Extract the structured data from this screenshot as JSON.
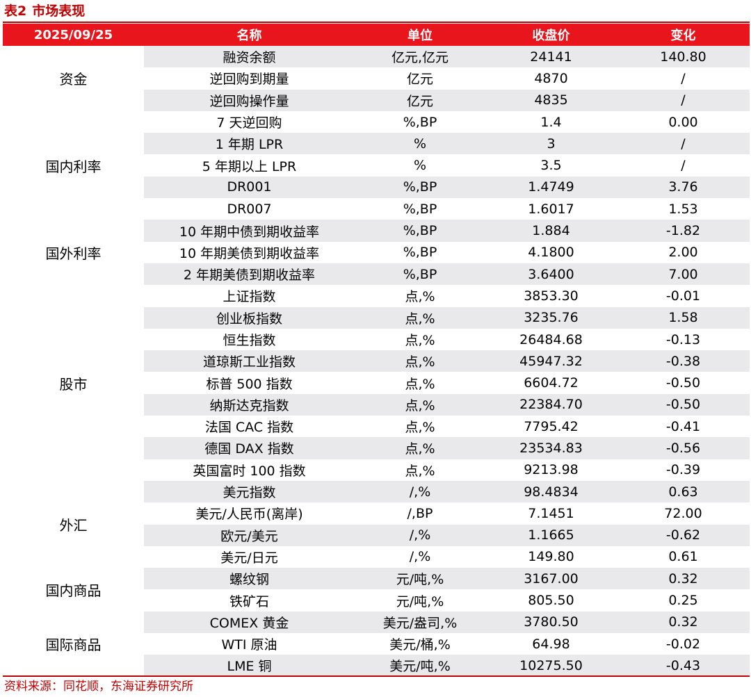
{
  "title": {
    "label": "表2",
    "text": "市场表现"
  },
  "header": {
    "date": "2025/09/25",
    "name": "名称",
    "unit": "单位",
    "close": "收盘价",
    "change": "变化"
  },
  "groups": [
    {
      "category": "资金",
      "rows": [
        {
          "name": "融资余额",
          "unit": "亿元,亿元",
          "close": "24141",
          "change": "140.80"
        },
        {
          "name": "逆回购到期量",
          "unit": "亿元",
          "close": "4870",
          "change": "/"
        },
        {
          "name": "逆回购操作量",
          "unit": "亿元",
          "close": "4835",
          "change": "/"
        }
      ]
    },
    {
      "category": "国内利率",
      "rows": [
        {
          "name": "7 天逆回购",
          "unit": "%,BP",
          "close": "1.4",
          "change": "0.00"
        },
        {
          "name": "1 年期 LPR",
          "unit": "%",
          "close": "3",
          "change": "/"
        },
        {
          "name": "5 年期以上 LPR",
          "unit": "%",
          "close": "3.5",
          "change": "/"
        },
        {
          "name": "DR001",
          "unit": "%,BP",
          "close": "1.4749",
          "change": "3.76"
        },
        {
          "name": "DR007",
          "unit": "%,BP",
          "close": "1.6017",
          "change": "1.53"
        }
      ]
    },
    {
      "category": "国外利率",
      "rows": [
        {
          "name": "10 年期中债到期收益率",
          "unit": "%,BP",
          "close": "1.884",
          "change": "-1.82"
        },
        {
          "name": "10 年期美债到期收益率",
          "unit": "%,BP",
          "close": "4.1800",
          "change": "2.00"
        },
        {
          "name": "2 年期美债到期收益率",
          "unit": "%,BP",
          "close": "3.6400",
          "change": "7.00"
        }
      ]
    },
    {
      "category": "股市",
      "rows": [
        {
          "name": "上证指数",
          "unit": "点,%",
          "close": "3853.30",
          "change": "-0.01"
        },
        {
          "name": "创业板指数",
          "unit": "点,%",
          "close": "3235.76",
          "change": "1.58"
        },
        {
          "name": "恒生指数",
          "unit": "点,%",
          "close": "26484.68",
          "change": "-0.13"
        },
        {
          "name": "道琼斯工业指数",
          "unit": "点,%",
          "close": "45947.32",
          "change": "-0.38"
        },
        {
          "name": "标普 500 指数",
          "unit": "点,%",
          "close": "6604.72",
          "change": "-0.50"
        },
        {
          "name": "纳斯达克指数",
          "unit": "点,%",
          "close": "22384.70",
          "change": "-0.50"
        },
        {
          "name": "法国 CAC 指数",
          "unit": "点,%",
          "close": "7795.42",
          "change": "-0.41"
        },
        {
          "name": "德国 DAX 指数",
          "unit": "点,%",
          "close": "23534.83",
          "change": "-0.56"
        },
        {
          "name": "英国富时 100 指数",
          "unit": "点,%",
          "close": "9213.98",
          "change": "-0.39"
        }
      ]
    },
    {
      "category": "外汇",
      "rows": [
        {
          "name": "美元指数",
          "unit": "/,%",
          "close": "98.4834",
          "change": "0.63"
        },
        {
          "name": "美元/人民币(离岸)",
          "unit": "/,BP",
          "close": "7.1451",
          "change": "72.00"
        },
        {
          "name": "欧元/美元",
          "unit": "/,%",
          "close": "1.1665",
          "change": "-0.62"
        },
        {
          "name": "美元/日元",
          "unit": "/,%",
          "close": "149.80",
          "change": "0.61"
        }
      ]
    },
    {
      "category": "国内商品",
      "rows": [
        {
          "name": "螺纹钢",
          "unit": "元/吨,%",
          "close": "3167.00",
          "change": "0.32"
        },
        {
          "name": "铁矿石",
          "unit": "元/吨,%",
          "close": "805.50",
          "change": "0.25"
        }
      ]
    },
    {
      "category": "国际商品",
      "rows": [
        {
          "name": "COMEX 黄金",
          "unit": "美元/盎司,%",
          "close": "3780.50",
          "change": "0.32"
        },
        {
          "name": "WTI 原油",
          "unit": "美元/桶,%",
          "close": "64.98",
          "change": "-0.02"
        },
        {
          "name": "LME 铜",
          "unit": "美元/吨,%",
          "close": "10275.50",
          "change": "-0.43"
        }
      ]
    }
  ],
  "source": "资料来源：同花顺，东海证券研究所",
  "colors": {
    "accent_red": "#c00000",
    "header_red": "#e8161c",
    "stripe_gray": "#e9e9eb"
  }
}
